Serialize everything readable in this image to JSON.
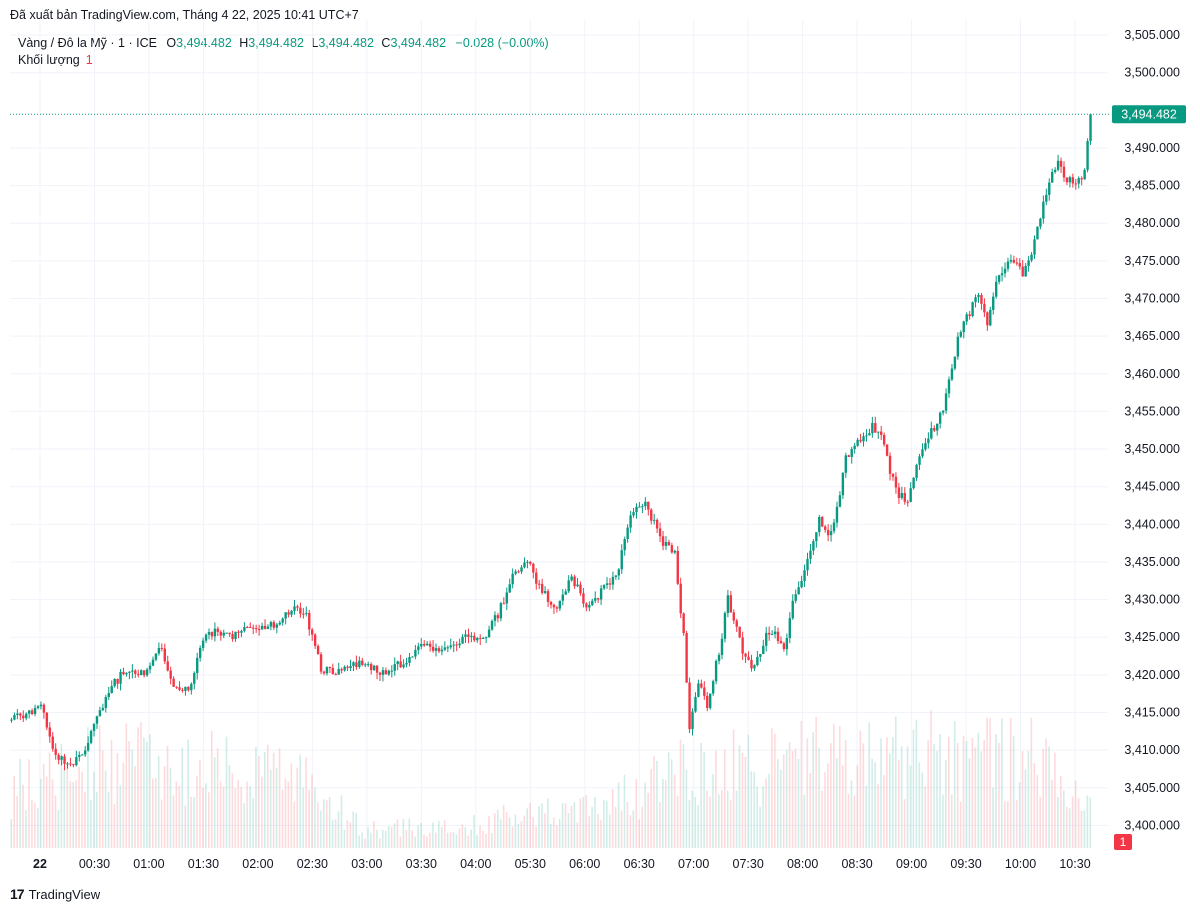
{
  "header": {
    "published": "Đã xuất bản TradingView.com, Tháng 4 22, 2025 10:41 UTC+7"
  },
  "legend": {
    "symbol": "Vàng / Đô la Mỹ · 1 · ICE",
    "o_label": "O",
    "o_value": "3,494.482",
    "h_label": "H",
    "h_value": "3,494.482",
    "l_label": "L",
    "l_value": "3,494.482",
    "c_label": "C",
    "c_value": "3,494.482",
    "change": "−0.028 (−0.00%)",
    "volume_label": "Khối lượng",
    "volume_value": "1"
  },
  "footer": {
    "brand": "TradingView",
    "logo": "17"
  },
  "colors": {
    "up": "#089981",
    "down": "#f23645",
    "text": "#131722",
    "grid": "#f0f3fa"
  },
  "chart_data": {
    "type": "candlestick",
    "interval": "1 minute",
    "y_range": [
      3397,
      3507
    ],
    "y_ticks": [
      3400,
      3405,
      3410,
      3415,
      3420,
      3425,
      3430,
      3435,
      3440,
      3445,
      3450,
      3455,
      3460,
      3465,
      3470,
      3475,
      3480,
      3485,
      3490,
      3500,
      3505
    ],
    "y_tick_labels": [
      "3,400.000",
      "3,405.000",
      "3,410.000",
      "3,415.000",
      "3,420.000",
      "3,425.000",
      "3,430.000",
      "3,435.000",
      "3,440.000",
      "3,445.000",
      "3,450.000",
      "3,455.000",
      "3,460.000",
      "3,465.000",
      "3,470.000",
      "3,475.000",
      "3,480.000",
      "3,485.000",
      "3,490.000",
      "3,500.000",
      "3,505.000"
    ],
    "x_labels": [
      "22",
      "00:30",
      "01:00",
      "01:30",
      "02:00",
      "02:30",
      "03:00",
      "03:30",
      "04:00",
      "05:30",
      "06:00",
      "06:30",
      "07:00",
      "07:30",
      "08:00",
      "08:30",
      "09:00",
      "09:30",
      "10:00",
      "10:30"
    ],
    "last_price": 3494.482,
    "last_price_label": "3,494.482",
    "volume_last": "1",
    "close_path": [
      [
        0,
        3414
      ],
      [
        5,
        3415
      ],
      [
        10,
        3416
      ],
      [
        15,
        3409
      ],
      [
        20,
        3408
      ],
      [
        25,
        3410
      ],
      [
        30,
        3415
      ],
      [
        35,
        3419
      ],
      [
        40,
        3421
      ],
      [
        45,
        3420
      ],
      [
        50,
        3424
      ],
      [
        55,
        3419
      ],
      [
        60,
        3418
      ],
      [
        65,
        3425
      ],
      [
        70,
        3426
      ],
      [
        75,
        3425
      ],
      [
        80,
        3426
      ],
      [
        85,
        3426
      ],
      [
        90,
        3427
      ],
      [
        95,
        3429
      ],
      [
        100,
        3428
      ],
      [
        105,
        3421
      ],
      [
        110,
        3420
      ],
      [
        115,
        3421
      ],
      [
        120,
        3422
      ],
      [
        125,
        3420
      ],
      [
        130,
        3421
      ],
      [
        135,
        3422
      ],
      [
        140,
        3424
      ],
      [
        145,
        3423
      ],
      [
        150,
        3424
      ],
      [
        155,
        3425
      ],
      [
        160,
        3425
      ],
      [
        165,
        3428
      ],
      [
        170,
        3433
      ],
      [
        175,
        3435
      ],
      [
        180,
        3431
      ],
      [
        185,
        3429
      ],
      [
        190,
        3433
      ],
      [
        195,
        3429
      ],
      [
        200,
        3431
      ],
      [
        205,
        3433
      ],
      [
        210,
        3441
      ],
      [
        215,
        3443
      ],
      [
        220,
        3438
      ],
      [
        225,
        3436
      ],
      [
        228,
        3425
      ],
      [
        230,
        3413
      ],
      [
        233,
        3419
      ],
      [
        236,
        3416
      ],
      [
        240,
        3423
      ],
      [
        243,
        3430
      ],
      [
        246,
        3426
      ],
      [
        249,
        3422
      ],
      [
        252,
        3421
      ],
      [
        256,
        3425
      ],
      [
        259,
        3426
      ],
      [
        262,
        3423
      ],
      [
        265,
        3430
      ],
      [
        268,
        3433
      ],
      [
        271,
        3436
      ],
      [
        274,
        3441
      ],
      [
        277,
        3438
      ],
      [
        280,
        3442
      ],
      [
        283,
        3449
      ],
      [
        286,
        3450
      ],
      [
        289,
        3452
      ],
      [
        292,
        3453
      ],
      [
        295,
        3452
      ],
      [
        298,
        3447
      ],
      [
        301,
        3444
      ],
      [
        304,
        3443
      ],
      [
        307,
        3448
      ],
      [
        310,
        3451
      ],
      [
        313,
        3453
      ],
      [
        316,
        3455
      ],
      [
        319,
        3461
      ],
      [
        322,
        3466
      ],
      [
        325,
        3468
      ],
      [
        328,
        3471
      ],
      [
        331,
        3466
      ],
      [
        334,
        3472
      ],
      [
        337,
        3474
      ],
      [
        340,
        3475
      ],
      [
        343,
        3473
      ],
      [
        346,
        3476
      ],
      [
        349,
        3481
      ],
      [
        352,
        3486
      ],
      [
        355,
        3488
      ],
      [
        358,
        3486
      ],
      [
        361,
        3485
      ],
      [
        364,
        3487
      ],
      [
        366,
        3494.482
      ]
    ],
    "volume_profile": [
      [
        0,
        0.32
      ],
      [
        25,
        0.45
      ],
      [
        50,
        0.48
      ],
      [
        75,
        0.42
      ],
      [
        100,
        0.35
      ],
      [
        120,
        0.1
      ],
      [
        150,
        0.12
      ],
      [
        175,
        0.18
      ],
      [
        200,
        0.22
      ],
      [
        225,
        0.4
      ],
      [
        250,
        0.45
      ],
      [
        275,
        0.5
      ],
      [
        300,
        0.52
      ],
      [
        325,
        0.5
      ],
      [
        350,
        0.48
      ],
      [
        366,
        0.3
      ]
    ]
  }
}
